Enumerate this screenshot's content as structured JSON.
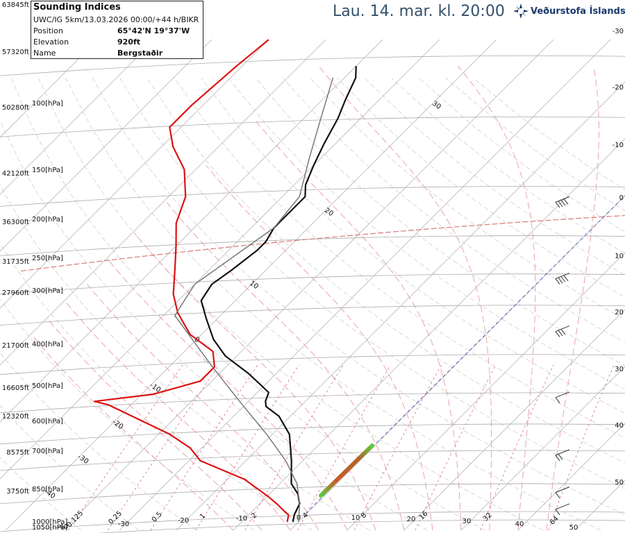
{
  "info": {
    "title": "Sounding Indices",
    "run": "UWC/IG 5km/13.03.2026 00:00/+44 h/BIKR",
    "rows": [
      {
        "label": "Position",
        "value": "65°42'N 19°37'W"
      },
      {
        "label": "Elevation",
        "value": "920ft"
      },
      {
        "label": "Name",
        "value": "Bergstaðir"
      }
    ]
  },
  "headline": "Lau. 14. mar. kl. 20:00",
  "brand": {
    "name": "Veðurstofa Íslands",
    "logo_color": "#1a3a6e"
  },
  "chart_data": {
    "type": "line",
    "subtype": "skew-T log-P sounding",
    "height_ticks": [
      "63845ft",
      "57320ft",
      "50280ft",
      "42120ft",
      "36300ft",
      "31735ft",
      "27960ft",
      "21700ft",
      "16605ft",
      "12320ft",
      "8575ft",
      "3750ft"
    ],
    "pressure_ticks": [
      "100[hPa]",
      "150[hPa]",
      "200[hPa]",
      "250[hPa]",
      "300[hPa]",
      "400[hPa]",
      "500[hPa]",
      "600[hPa]",
      "700[hPa]",
      "850[hPa]",
      "1000[hPa]",
      "1050[hPa]"
    ],
    "right_ticks": [
      "-30",
      "-20",
      "-10",
      "0",
      "10",
      "20",
      "30",
      "40",
      "50"
    ],
    "bottom_temp_ticks": [
      "-40",
      "-30",
      "-20",
      "-10",
      "0",
      "10",
      "20",
      "30",
      "40",
      "50"
    ],
    "mixing_ratio_ticks": [
      "0.125",
      "0.25",
      "0.5",
      "1",
      "2",
      "4",
      "8",
      "16",
      "32",
      "64"
    ],
    "isotherm_labels": [
      "30",
      "20",
      "10",
      "0",
      "-10",
      "-20",
      "-30",
      "-40"
    ],
    "series": [
      {
        "role": "temperature",
        "color": "#111111",
        "points": [
          [
            -1,
            1000
          ],
          [
            -2,
            960
          ],
          [
            -3,
            900
          ],
          [
            -5,
            850
          ],
          [
            -8,
            800
          ],
          [
            -12,
            700
          ],
          [
            -17,
            600
          ],
          [
            -22,
            540
          ],
          [
            -26,
            510
          ],
          [
            -27,
            495
          ],
          [
            -28,
            470
          ],
          [
            -30,
            455
          ],
          [
            -35,
            420
          ],
          [
            -42,
            380
          ],
          [
            -47,
            345
          ],
          [
            -52,
            305
          ],
          [
            -56,
            275
          ],
          [
            -57,
            250
          ],
          [
            -56,
            230
          ],
          [
            -55,
            205
          ],
          [
            -55,
            195
          ],
          [
            -56,
            180
          ],
          [
            -56,
            150
          ],
          [
            -58,
            140
          ],
          [
            -60,
            125
          ],
          [
            -62,
            110
          ],
          [
            -64,
            95
          ],
          [
            -66,
            85
          ],
          [
            -68,
            75
          ],
          [
            -70,
            70
          ]
        ]
      },
      {
        "role": "dewpoint",
        "color": "#dd1111",
        "points": [
          [
            -2,
            1000
          ],
          [
            -3,
            960
          ],
          [
            -5,
            930
          ],
          [
            -7,
            900
          ],
          [
            -10,
            860
          ],
          [
            -17,
            780
          ],
          [
            -28,
            700
          ],
          [
            -32,
            650
          ],
          [
            -38,
            600
          ],
          [
            -54,
            505
          ],
          [
            -57,
            495
          ],
          [
            -48,
            475
          ],
          [
            -42,
            440
          ],
          [
            -42,
            405
          ],
          [
            -45,
            370
          ],
          [
            -52,
            335
          ],
          [
            -58,
            295
          ],
          [
            -62,
            265
          ],
          [
            -66,
            230
          ],
          [
            -70,
            200
          ],
          [
            -74,
            175
          ],
          [
            -77,
            150
          ],
          [
            -82,
            128
          ],
          [
            -88,
            112
          ],
          [
            -92,
            100
          ],
          [
            -92,
            88
          ],
          [
            -91,
            70
          ],
          [
            -90,
            60
          ]
        ]
      },
      {
        "role": "parcel",
        "color": "#777777",
        "points": [
          [
            0,
            1000
          ],
          [
            -3,
            900
          ],
          [
            -7,
            800
          ],
          [
            -13,
            700
          ],
          [
            -21,
            600
          ],
          [
            -31,
            500
          ],
          [
            -43,
            400
          ],
          [
            -58,
            300
          ],
          [
            -60,
            250
          ],
          [
            -56,
            180
          ],
          [
            -57,
            150
          ],
          [
            -62,
            120
          ],
          [
            -67,
            95
          ],
          [
            -72,
            75
          ]
        ]
      }
    ],
    "tropopause_hpa": 205,
    "freezing_level_hpa": 1000,
    "wind_barbs": [
      {
        "p": 960,
        "speed_kt": 10
      },
      {
        "p": 870,
        "speed_kt": 10
      },
      {
        "p": 700,
        "speed_kt": 15
      },
      {
        "p": 500,
        "speed_kt": 10
      },
      {
        "p": 340,
        "speed_kt": 30
      },
      {
        "p": 250,
        "speed_kt": 35
      },
      {
        "p": 160,
        "speed_kt": 40
      }
    ],
    "colors": {
      "temp": "#111111",
      "dewpoint": "#dd1111",
      "parcel": "#777777",
      "isotherm": "#b9b9b9",
      "dry_adiabat": "#c9c9c9",
      "moist_adiabat": "#e79aa4",
      "mixing_ratio": "#d86b7a",
      "tropopause": "#d87a7a",
      "zero_line": "#4444bb"
    }
  }
}
